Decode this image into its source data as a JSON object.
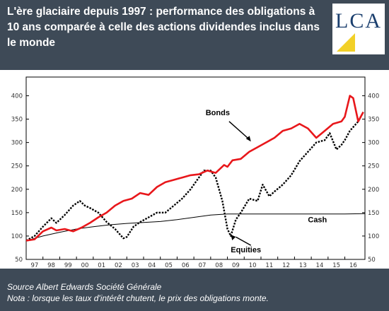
{
  "header": {
    "title": "L'ère glaciaire depuis 1997 : performance des obligations à 10 ans comparée à celle des actions dividendes inclus dans le monde",
    "logo_text": "LCA"
  },
  "colors": {
    "background": "#3e4a57",
    "bonds": "#e8171b",
    "equities": "#000000",
    "cash": "#000000",
    "logo_text": "#1b3f6e",
    "logo_accent": "#f2d027"
  },
  "footer": {
    "source": "Source Albert Edwards Société Générale",
    "note": "Nota : lorsque les taux d'intérêt chutent, le prix des obligations monte."
  },
  "chart_data": {
    "type": "line",
    "title": "",
    "xlabel": "",
    "ylabel": "",
    "x_tick_labels": [
      "97",
      "98",
      "99",
      "00",
      "01",
      "02",
      "03",
      "04",
      "05",
      "06",
      "07",
      "08",
      "09",
      "10",
      "11",
      "12",
      "13",
      "14",
      "15",
      "16"
    ],
    "y_ticks": [
      50,
      100,
      150,
      200,
      250,
      300,
      350,
      400
    ],
    "ylim": [
      50,
      440
    ],
    "xlim": [
      1997.0,
      2017.2
    ],
    "grid": false,
    "annotations": [
      "Bonds",
      "Equities",
      "Cash"
    ],
    "series": [
      {
        "name": "Bonds",
        "x": [
          1997.0,
          1997.5,
          1998.0,
          1998.5,
          1998.8,
          1999.3,
          1999.8,
          2000.3,
          2000.8,
          2001.3,
          2001.8,
          2002.3,
          2002.8,
          2003.3,
          2003.8,
          2004.3,
          2004.8,
          2005.3,
          2005.8,
          2006.3,
          2006.8,
          2007.3,
          2007.8,
          2008.3,
          2008.8,
          2009.0,
          2009.3,
          2009.8,
          2010.3,
          2010.8,
          2011.3,
          2011.8,
          2012.3,
          2012.8,
          2013.3,
          2013.8,
          2014.3,
          2014.8,
          2015.3,
          2015.8,
          2016.0,
          2016.3,
          2016.5,
          2016.8,
          2017.1
        ],
        "y": [
          90,
          93,
          110,
          118,
          112,
          115,
          110,
          118,
          128,
          140,
          150,
          165,
          175,
          180,
          192,
          188,
          205,
          215,
          220,
          225,
          230,
          232,
          240,
          235,
          252,
          248,
          262,
          265,
          280,
          290,
          300,
          310,
          325,
          330,
          340,
          330,
          310,
          325,
          340,
          345,
          355,
          400,
          395,
          345,
          365
        ]
      },
      {
        "name": "Equities",
        "x": [
          1997.0,
          1997.5,
          1998.0,
          1998.5,
          1998.8,
          1999.3,
          1999.8,
          2000.2,
          2000.5,
          2000.8,
          2001.3,
          2001.8,
          2002.3,
          2002.8,
          2003.0,
          2003.4,
          2003.8,
          2004.3,
          2004.8,
          2005.3,
          2005.8,
          2006.3,
          2006.8,
          2007.3,
          2007.6,
          2008.0,
          2008.3,
          2008.7,
          2009.0,
          2009.2,
          2009.5,
          2009.8,
          2010.3,
          2010.8,
          2011.1,
          2011.5,
          2011.8,
          2012.3,
          2012.8,
          2013.3,
          2013.8,
          2014.3,
          2014.8,
          2015.1,
          2015.5,
          2015.8,
          2016.0,
          2016.3,
          2016.8,
          2017.1
        ],
        "y": [
          90,
          100,
          120,
          138,
          128,
          145,
          165,
          175,
          165,
          160,
          150,
          130,
          115,
          95,
          98,
          120,
          130,
          140,
          150,
          150,
          165,
          180,
          200,
          225,
          240,
          240,
          225,
          175,
          115,
          100,
          135,
          150,
          180,
          175,
          210,
          185,
          195,
          210,
          230,
          260,
          280,
          300,
          305,
          320,
          285,
          295,
          305,
          325,
          345,
          365
        ]
      },
      {
        "name": "Cash",
        "x": [
          1997.0,
          1998.0,
          1999.0,
          2000.0,
          2001.0,
          2002.0,
          2003.0,
          2004.0,
          2005.0,
          2006.0,
          2007.0,
          2008.0,
          2009.0,
          2010.0,
          2012.0,
          2014.0,
          2016.0,
          2017.2
        ],
        "y": [
          90,
          100,
          108,
          115,
          120,
          124,
          127,
          129,
          131,
          135,
          140,
          145,
          147,
          147,
          147,
          147,
          147,
          148
        ]
      }
    ]
  }
}
